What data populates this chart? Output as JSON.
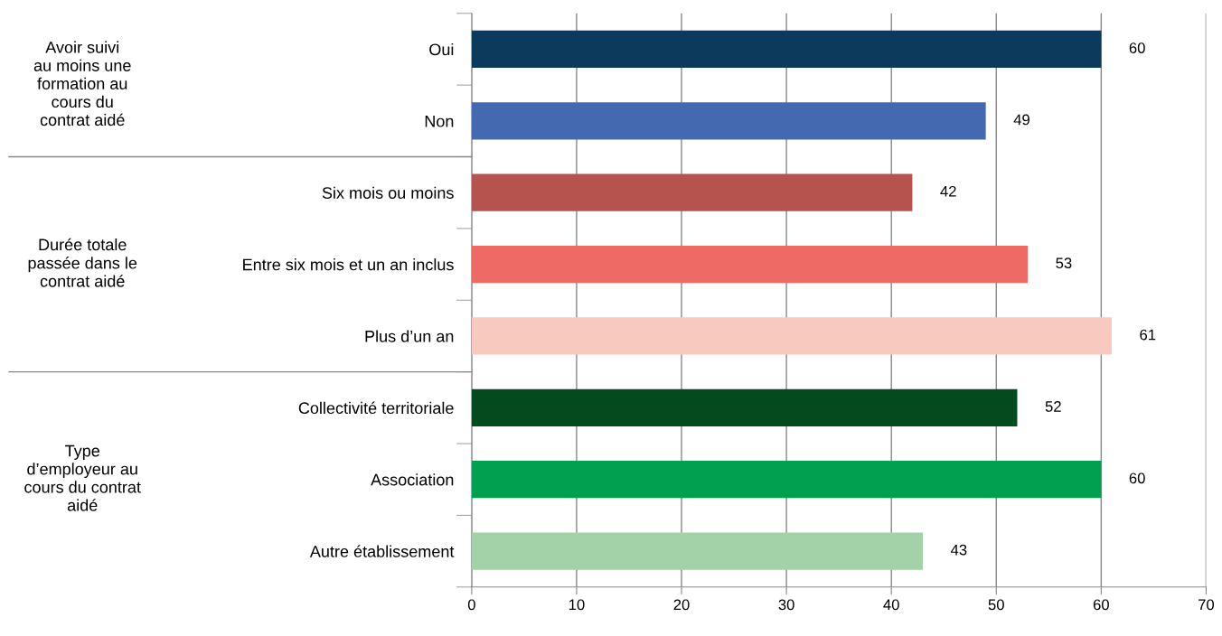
{
  "chart_data": {
    "type": "bar",
    "orientation": "horizontal",
    "categories": [
      "Oui",
      "Non",
      "Six mois ou moins",
      "Entre six mois et un an inclus",
      "Plus d’un an",
      "Collectivité territoriale",
      "Association",
      "Autre établissement"
    ],
    "values": [
      60,
      49,
      42,
      53,
      61,
      52,
      60,
      43
    ],
    "colors": [
      "#0b3a5c",
      "#4569b0",
      "#b5544e",
      "#ed6b64",
      "#f7c9bf",
      "#034a1f",
      "#00a050",
      "#a3d1a8"
    ],
    "xlim": [
      0,
      70
    ],
    "xticks": [
      0,
      10,
      20,
      30,
      40,
      50,
      60,
      70
    ],
    "grid": "x",
    "data_labels": true,
    "annotations": [
      "Avoir suivi\nau moins une\nformation au\ncours du\ncontrat aidé",
      "Durée totale\npassée dans le\ncontrat aidé",
      "Type\nd’employeur au\ncours du contrat\naidé"
    ]
  }
}
